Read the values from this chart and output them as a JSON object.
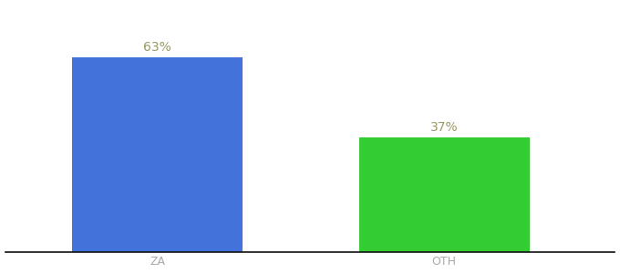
{
  "categories": [
    "ZA",
    "OTH"
  ],
  "values": [
    63,
    37
  ],
  "bar_colors": [
    "#4472db",
    "#33cc33"
  ],
  "label_texts": [
    "63%",
    "37%"
  ],
  "label_color": "#999966",
  "tick_color": "#aaaaaa",
  "axis_line_color": "#111111",
  "background_color": "#ffffff",
  "ylim": [
    0,
    80
  ],
  "bar_width": 0.28,
  "label_fontsize": 10,
  "tick_fontsize": 9,
  "x_positions": [
    0.25,
    0.72
  ],
  "xlim": [
    0.0,
    1.0
  ]
}
